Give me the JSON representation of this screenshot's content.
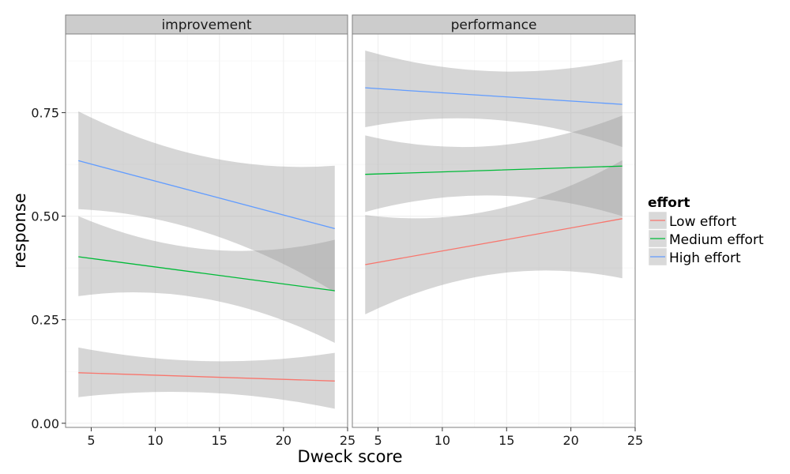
{
  "chart_data": {
    "type": "line",
    "facets": [
      "improvement",
      "performance"
    ],
    "xlabel": "Dweck score",
    "ylabel": "response",
    "xlim": [
      3,
      25
    ],
    "ylim": [
      -0.01,
      0.94
    ],
    "xticks": [
      5,
      10,
      15,
      20,
      25
    ],
    "xtick_labels": [
      "5",
      "10",
      "15",
      "20",
      "25"
    ],
    "yticks": [
      0,
      0.25,
      0.5,
      0.75
    ],
    "ytick_labels": [
      "0.00",
      "0.25",
      "0.50",
      "0.75"
    ],
    "grid": true,
    "legend": {
      "title": "effort",
      "position": "right",
      "entries": [
        "Low effort",
        "Medium effort",
        "High effort"
      ]
    },
    "colors": {
      "Low effort": "#F8766D",
      "Medium effort": "#00BA38",
      "High effort": "#619CFF",
      "ribbon": "#999999",
      "strip": "#CCCCCC",
      "grid": "#F0F0F0"
    },
    "series": [
      {
        "facet": "improvement",
        "name": "High effort",
        "x": [
          4,
          14,
          24
        ],
        "y": [
          0.634,
          0.552,
          0.47
        ],
        "ci_lower": [
          0.517,
          0.46,
          0.317
        ],
        "ci_upper": [
          0.753,
          0.643,
          0.622
        ]
      },
      {
        "facet": "improvement",
        "name": "Medium effort",
        "x": [
          4,
          14,
          24
        ],
        "y": [
          0.402,
          0.361,
          0.32
        ],
        "ci_lower": [
          0.307,
          0.3,
          0.194
        ],
        "ci_upper": [
          0.5,
          0.42,
          0.443
        ]
      },
      {
        "facet": "improvement",
        "name": "Low effort",
        "x": [
          4,
          14,
          24
        ],
        "y": [
          0.122,
          0.112,
          0.102
        ],
        "ci_lower": [
          0.063,
          0.074,
          0.035
        ],
        "ci_upper": [
          0.183,
          0.15,
          0.17
        ]
      },
      {
        "facet": "performance",
        "name": "High effort",
        "x": [
          4,
          14,
          24
        ],
        "y": [
          0.81,
          0.79,
          0.77
        ],
        "ci_lower": [
          0.715,
          0.733,
          0.667
        ],
        "ci_upper": [
          0.9,
          0.85,
          0.878
        ]
      },
      {
        "facet": "performance",
        "name": "Medium effort",
        "x": [
          4,
          14,
          24
        ],
        "y": [
          0.601,
          0.611,
          0.621
        ],
        "ci_lower": [
          0.51,
          0.55,
          0.5
        ],
        "ci_upper": [
          0.695,
          0.67,
          0.743
        ]
      },
      {
        "facet": "performance",
        "name": "Low effort",
        "x": [
          4,
          14,
          24
        ],
        "y": [
          0.383,
          0.438,
          0.494
        ],
        "ci_lower": [
          0.263,
          0.36,
          0.35
        ],
        "ci_upper": [
          0.503,
          0.515,
          0.635
        ]
      }
    ]
  }
}
